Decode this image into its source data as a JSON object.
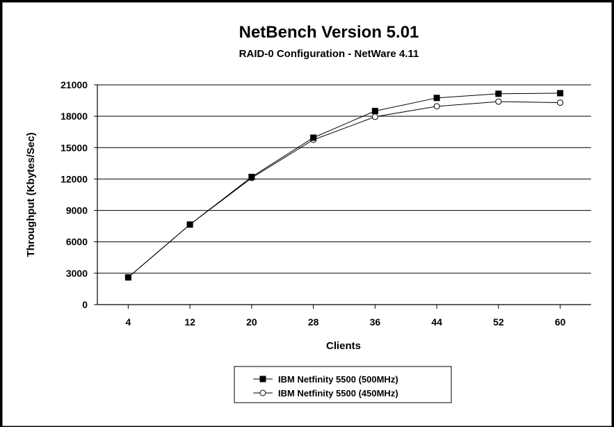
{
  "chart_data": {
    "type": "line",
    "title": "NetBench Version 5.01",
    "subtitle": "RAID-0 Configuration - NetWare 4.11",
    "xlabel": "Clients",
    "ylabel": "Throughput (Kbytes/Sec)",
    "categories": [
      "4",
      "12",
      "20",
      "28",
      "36",
      "44",
      "52",
      "60"
    ],
    "ylim": [
      0,
      21000
    ],
    "yticks": [
      "0",
      "3000",
      "6000",
      "9000",
      "12000",
      "15000",
      "18000",
      "21000"
    ],
    "grid": true,
    "legend_position": "bottom-center",
    "series": [
      {
        "name": "IBM Netfinity 5500 (500MHz)",
        "marker": "filled-square",
        "values": [
          2600,
          7650,
          12200,
          15950,
          18500,
          19750,
          20150,
          20200
        ]
      },
      {
        "name": "IBM Netfinity 5500 (450MHz)",
        "marker": "open-circle",
        "values": [
          2600,
          7650,
          12100,
          15750,
          17950,
          18950,
          19400,
          19300
        ]
      }
    ]
  }
}
